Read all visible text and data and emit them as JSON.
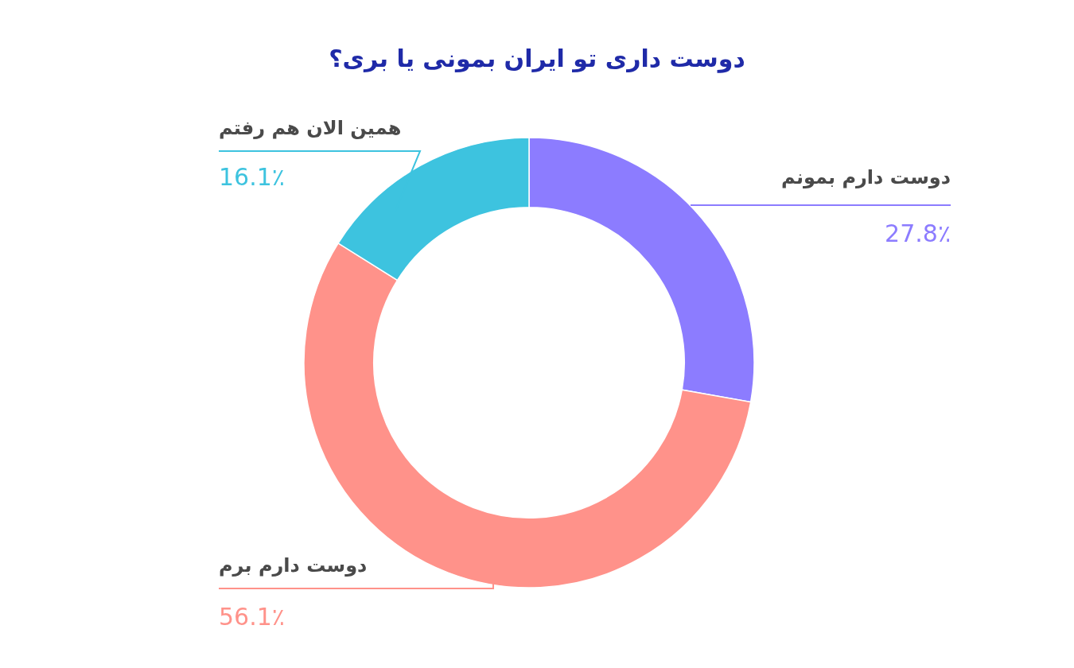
{
  "chart_data": {
    "type": "donut",
    "title": "دوست داری تو ایران بمونی یا بری؟",
    "categories": [
      "دوست دارم بمونم",
      "دوست دارم برم",
      "همین الان هم رفتم"
    ],
    "values": [
      27.8,
      56.1,
      16.1
    ],
    "value_labels": [
      "27.8٪",
      "56.1٪",
      "16.1٪"
    ],
    "colors": [
      "#8c7cff",
      "#ff928a",
      "#3dc3df"
    ]
  }
}
